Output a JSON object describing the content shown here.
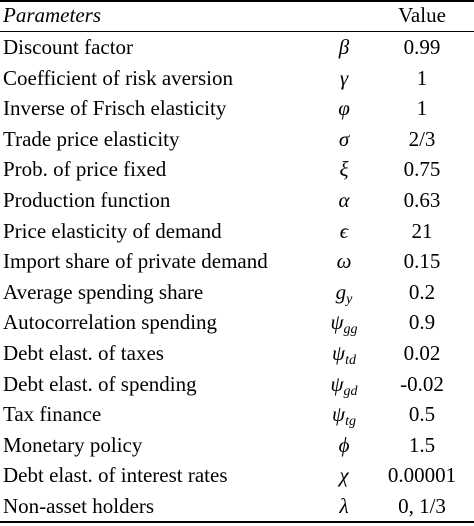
{
  "table": {
    "header": {
      "parameters": "Parameters",
      "value": "Value"
    },
    "rows": [
      {
        "name": "Discount factor",
        "symbol": "β",
        "sub": "",
        "value": "0.99"
      },
      {
        "name": "Coefficient of risk aversion",
        "symbol": "γ",
        "sub": "",
        "value": "1"
      },
      {
        "name": "Inverse of Frisch elasticity",
        "symbol": "φ",
        "sub": "",
        "value": "1"
      },
      {
        "name": "Trade price elasticity",
        "symbol": "σ",
        "sub": "",
        "value": "2/3"
      },
      {
        "name": "Prob. of price fixed",
        "symbol": "ξ",
        "sub": "",
        "value": "0.75"
      },
      {
        "name": "Production function",
        "symbol": "α",
        "sub": "",
        "value": "0.63"
      },
      {
        "name": "Price elasticity of demand",
        "symbol": "ϵ",
        "sub": "",
        "value": "21"
      },
      {
        "name": "Import share of private demand",
        "symbol": "ω",
        "sub": "",
        "value": "0.15"
      },
      {
        "name": "Average spending share",
        "symbol": "g",
        "sub": "y",
        "value": "0.2"
      },
      {
        "name": "Autocorrelation spending",
        "symbol": "ψ",
        "sub": "gg",
        "value": "0.9"
      },
      {
        "name": "Debt elast. of taxes",
        "symbol": "ψ",
        "sub": "td",
        "value": "0.02"
      },
      {
        "name": "Debt elast. of spending",
        "symbol": "ψ",
        "sub": "gd",
        "value": "-0.02"
      },
      {
        "name": "Tax finance",
        "symbol": "ψ",
        "sub": "tg",
        "value": "0.5"
      },
      {
        "name": "Monetary policy",
        "symbol": "ϕ",
        "sub": "",
        "value": "1.5"
      },
      {
        "name": "Debt elast. of interest rates",
        "symbol": "χ",
        "sub": "",
        "value": "0.00001"
      },
      {
        "name": "Non-asset holders",
        "symbol": "λ",
        "sub": "",
        "value": "0, 1/3"
      }
    ]
  }
}
